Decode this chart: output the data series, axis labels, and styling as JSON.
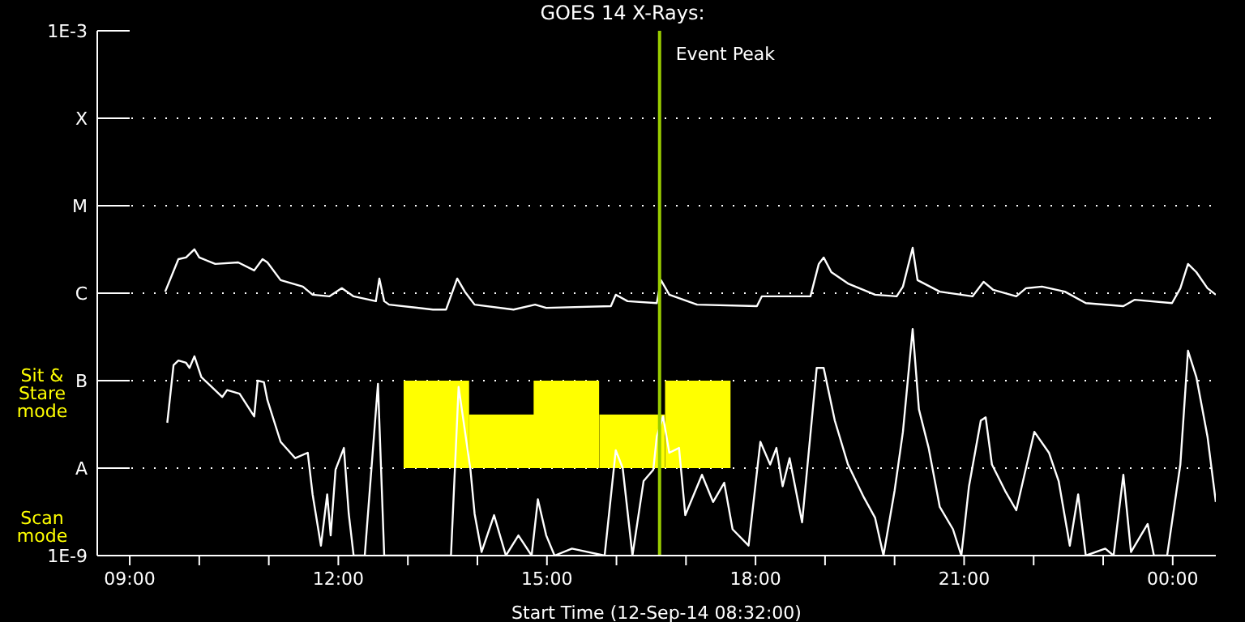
{
  "chart_data": {
    "type": "line",
    "title": "GOES 14 X-Rays:",
    "xlabel": "Start Time (12-Sep-14 08:32:00)",
    "log": "y",
    "grid": "y",
    "marker": "none",
    "line_style": "solid",
    "xlim": [
      8.533,
      24.62
    ],
    "xticks": [
      {
        "value": 9,
        "label": "09:00"
      },
      {
        "value": 10,
        "label": null
      },
      {
        "value": 11,
        "label": null
      },
      {
        "value": 12,
        "label": "12:00"
      },
      {
        "value": 13,
        "label": null
      },
      {
        "value": 14,
        "label": null
      },
      {
        "value": 15,
        "label": "15:00"
      },
      {
        "value": 16,
        "label": null
      },
      {
        "value": 17,
        "label": null
      },
      {
        "value": 18,
        "label": "18:00"
      },
      {
        "value": 19,
        "label": null
      },
      {
        "value": 20,
        "label": null
      },
      {
        "value": 21,
        "label": "21:00"
      },
      {
        "value": 22,
        "label": null
      },
      {
        "value": 23,
        "label": null
      },
      {
        "value": 24,
        "label": "00:00"
      }
    ],
    "ylim": [
      1e-09,
      0.001
    ],
    "yticks": [
      {
        "value": 1e-09,
        "label": "1E-9"
      },
      {
        "value": 1e-08,
        "label": "A"
      },
      {
        "value": 1e-07,
        "label": "B"
      },
      {
        "value": 1e-06,
        "label": "C"
      },
      {
        "value": 1e-05,
        "label": "M"
      },
      {
        "value": 0.0001,
        "label": "X"
      },
      {
        "value": 0.001,
        "label": "1E-3"
      }
    ],
    "series": [
      {
        "type": "bar",
        "color": "#ffff00",
        "x": [
          13.41,
          14.35,
          15.28,
          16.225,
          17.17
        ],
        "values": [
          9e-08,
          3.1e-08,
          9e-08,
          3.1e-08,
          9e-08
        ],
        "base": [
          1e-08,
          1e-08,
          1e-08,
          1e-08,
          1e-08
        ]
      },
      {
        "color": "#ffffff",
        "x": [
          9.51,
          9.7,
          9.81,
          9.93,
          10.0,
          10.23,
          10.56,
          10.79,
          10.91,
          10.98,
          11.17,
          11.49,
          11.63,
          11.87,
          12.05,
          12.22,
          12.54,
          12.59,
          12.66,
          12.73,
          13.36,
          13.55,
          13.71,
          13.82,
          13.96,
          14.52,
          14.83,
          14.99,
          15.92,
          15.99,
          16.16,
          16.58,
          16.64,
          16.76,
          17.16,
          18.02,
          18.09,
          18.79,
          18.91,
          18.98,
          19.09,
          19.33,
          19.72,
          20.03,
          20.12,
          20.26,
          20.33,
          20.65,
          21.12,
          21.28,
          21.42,
          21.75,
          21.89,
          22.12,
          22.45,
          22.75,
          23.29,
          23.45,
          23.99,
          24.11,
          24.22,
          24.34,
          24.5,
          24.62
        ],
        "values": [
          1.04e-06,
          2.45e-06,
          2.56e-06,
          3.17e-06,
          2.56e-06,
          2.16e-06,
          2.25e-06,
          1.82e-06,
          2.45e-06,
          2.25e-06,
          1.41e-06,
          1.19e-06,
          9.6e-07,
          9.2e-07,
          1.14e-06,
          9.2e-07,
          8.1e-07,
          1.47e-06,
          8.1e-07,
          7.4e-07,
          6.5e-07,
          6.5e-07,
          1.47e-06,
          1.04e-06,
          7.4e-07,
          6.5e-07,
          7.4e-07,
          6.8e-07,
          7.1e-07,
          9.6e-07,
          8.1e-07,
          7.7e-07,
          1.41e-06,
          9.6e-07,
          7.4e-07,
          7.1e-07,
          9.2e-07,
          9.2e-07,
          2.16e-06,
          2.56e-06,
          1.74e-06,
          1.29e-06,
          9.6e-07,
          9.2e-07,
          1.19e-06,
          3.3e-06,
          1.41e-06,
          1.04e-06,
          9.2e-07,
          1.35e-06,
          1.09e-06,
          9.2e-07,
          1.14e-06,
          1.19e-06,
          1.04e-06,
          7.7e-07,
          7.1e-07,
          8.4e-07,
          7.7e-07,
          1.14e-06,
          2.16e-06,
          1.74e-06,
          1.14e-06,
          9.6e-07
        ]
      },
      {
        "type": "line",
        "color": "#ffffff",
        "x": [
          9.54,
          9.63,
          9.7,
          9.81,
          9.86,
          9.93,
          10.03,
          10.33,
          10.4,
          10.58,
          10.79,
          10.84,
          10.93,
          10.98,
          11.17,
          11.38,
          11.56,
          11.63,
          11.75,
          11.84,
          11.89,
          11.96,
          12.08,
          12.15,
          12.22,
          12.38,
          12.57,
          12.66,
          13.62,
          13.73,
          13.9,
          13.96,
          14.06,
          14.24,
          14.41,
          14.59,
          14.78,
          14.87,
          14.99,
          15.11,
          15.36,
          15.83,
          15.99,
          16.09,
          16.23,
          16.39,
          16.53,
          16.58,
          16.67,
          16.76,
          16.9,
          16.99,
          17.23,
          17.39,
          17.55,
          17.67,
          17.9,
          18.07,
          18.21,
          18.3,
          18.39,
          18.49,
          18.67,
          18.88,
          18.98,
          19.14,
          19.33,
          19.56,
          19.72,
          19.84,
          20.0,
          20.12,
          20.26,
          20.35,
          20.49,
          20.65,
          20.84,
          20.96,
          21.07,
          21.24,
          21.31,
          21.4,
          21.59,
          21.75,
          22.01,
          22.22,
          22.36,
          22.52,
          22.64,
          22.75,
          23.03,
          23.15,
          23.29,
          23.4,
          23.64,
          23.73,
          23.92,
          24.11,
          24.22,
          24.34,
          24.5,
          24.62
        ],
        "values": [
          3.3e-08,
          1.5e-07,
          1.7e-07,
          1.6e-07,
          1.4e-07,
          1.9e-07,
          1.1e-07,
          6.5e-08,
          7.8e-08,
          7.1e-08,
          3.9e-08,
          1e-07,
          9.6e-08,
          6e-08,
          2e-08,
          1.3e-08,
          1.5e-08,
          5e-09,
          1.3e-09,
          5e-09,
          1.7e-09,
          9.6e-09,
          1.7e-08,
          3e-09,
          1e-09,
          1e-09,
          9.2e-08,
          1e-09,
          1e-09,
          8.5e-08,
          9.6e-09,
          3e-09,
          1.1e-09,
          2.9e-09,
          1e-09,
          1.7e-09,
          1e-09,
          4.4e-09,
          1.7e-09,
          1e-09,
          1.2e-09,
          1e-09,
          1.6e-08,
          1e-08,
          1e-09,
          7.1e-09,
          9.6e-09,
          2.3e-08,
          3.9e-08,
          1.5e-08,
          1.7e-08,
          2.9e-09,
          8.4e-09,
          4.1e-09,
          6.8e-09,
          2e-09,
          1.3e-09,
          2e-08,
          1.1e-08,
          1.7e-08,
          6.2e-09,
          1.3e-08,
          2.4e-09,
          1.4e-07,
          1.4e-07,
          3.5e-08,
          1.1e-08,
          4.6e-09,
          2.7e-09,
          1e-09,
          5.5e-09,
          2.6e-08,
          3.9e-07,
          4.7e-08,
          1.7e-08,
          3.6e-09,
          2e-09,
          1e-09,
          6.2e-09,
          3.5e-08,
          3.8e-08,
          1.1e-08,
          5.5e-09,
          3.3e-09,
          2.6e-08,
          1.5e-08,
          7.1e-09,
          1.3e-09,
          5e-09,
          1e-09,
          1.2e-09,
          1e-09,
          8.4e-09,
          1.1e-09,
          2.3e-09,
          1e-09,
          1e-09,
          1.1e-08,
          2.2e-07,
          1.1e-07,
          2.3e-08,
          4.1e-09
        ]
      }
    ],
    "ref_lines": [
      {
        "axis": "x",
        "value": 16.62,
        "label": "Event Peak",
        "color": "#99cc00"
      }
    ],
    "annotations": [
      "Sit & Stare mode",
      "Scan mode"
    ]
  }
}
